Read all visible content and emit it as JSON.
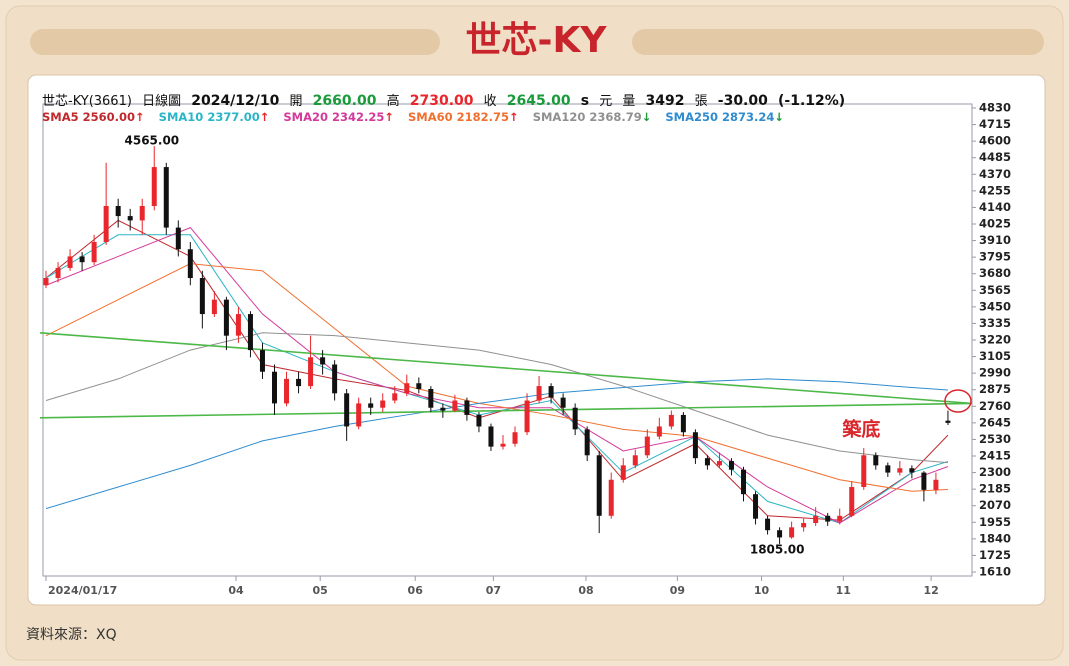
{
  "chart_data": {
    "type": "candlestick",
    "title": "世芯-KY",
    "source": "資料來源：XQ",
    "header": {
      "symbol": "世芯-KY(3661)",
      "period": "日線圖",
      "date": "2024/12/10",
      "open_label": "開",
      "open": "2660.00",
      "high_label": "高",
      "high": "2730.00",
      "close_label": "收",
      "close": "2645.00",
      "s": "s",
      "unit": "元",
      "volume_label": "量",
      "volume": "3492",
      "volume_unit": "張",
      "change": "-30.00",
      "change_pct": "(-1.12%)"
    },
    "xlim": [
      -0.5,
      77
    ],
    "ylim": [
      1610,
      4830
    ],
    "yticks": [
      1610,
      1725,
      1840,
      1955,
      2070,
      2185,
      2300,
      2415,
      2530,
      2645,
      2760,
      2875,
      2990,
      3105,
      3220,
      3335,
      3450,
      3565,
      3680,
      3795,
      3910,
      4025,
      4140,
      4255,
      4370,
      4485,
      4600,
      4715,
      4830
    ],
    "xticks": [
      {
        "value": 0,
        "label": "2024/01/17"
      },
      {
        "value": 15.8,
        "label": "04"
      },
      {
        "value": 22.8,
        "label": "05"
      },
      {
        "value": 30.7,
        "label": "06"
      },
      {
        "value": 37.2,
        "label": "07"
      },
      {
        "value": 44.9,
        "label": "08"
      },
      {
        "value": 52.5,
        "label": "09"
      },
      {
        "value": 59.5,
        "label": "10"
      },
      {
        "value": 66.3,
        "label": "11"
      },
      {
        "value": 73.6,
        "label": "12"
      }
    ],
    "up_color": "#e8262b",
    "down_color": "#111111",
    "ohlc": [
      [
        3600,
        3700,
        3580,
        3650
      ],
      [
        3650,
        3760,
        3620,
        3720
      ],
      [
        3720,
        3850,
        3700,
        3800
      ],
      [
        3800,
        3830,
        3700,
        3760
      ],
      [
        3760,
        3950,
        3740,
        3900
      ],
      [
        3900,
        4450,
        3880,
        4150
      ],
      [
        4150,
        4200,
        4000,
        4080
      ],
      [
        4080,
        4130,
        3980,
        4050
      ],
      [
        4050,
        4200,
        3950,
        4150
      ],
      [
        4150,
        4565,
        4120,
        4420
      ],
      [
        4420,
        4450,
        3950,
        4000
      ],
      [
        4000,
        4050,
        3800,
        3850
      ],
      [
        3850,
        3900,
        3600,
        3650
      ],
      [
        3650,
        3700,
        3300,
        3400
      ],
      [
        3400,
        3560,
        3380,
        3500
      ],
      [
        3500,
        3520,
        3150,
        3250
      ],
      [
        3250,
        3450,
        3200,
        3400
      ],
      [
        3400,
        3420,
        3100,
        3150
      ],
      [
        3150,
        3200,
        2950,
        3000
      ],
      [
        3000,
        3050,
        2700,
        2780
      ],
      [
        2780,
        3000,
        2760,
        2950
      ],
      [
        2950,
        3000,
        2850,
        2900
      ],
      [
        2900,
        3250,
        2880,
        3100
      ],
      [
        3100,
        3150,
        2980,
        3050
      ],
      [
        3050,
        3080,
        2800,
        2850
      ],
      [
        2850,
        2880,
        2520,
        2620
      ],
      [
        2620,
        2820,
        2600,
        2780
      ],
      [
        2780,
        2820,
        2700,
        2750
      ],
      [
        2750,
        2850,
        2720,
        2800
      ],
      [
        2800,
        2900,
        2780,
        2850
      ],
      [
        2850,
        2980,
        2830,
        2920
      ],
      [
        2920,
        2960,
        2850,
        2880
      ],
      [
        2880,
        2900,
        2720,
        2750
      ],
      [
        2750,
        2780,
        2680,
        2730
      ],
      [
        2730,
        2840,
        2720,
        2800
      ],
      [
        2800,
        2820,
        2660,
        2700
      ],
      [
        2700,
        2720,
        2580,
        2620
      ],
      [
        2620,
        2640,
        2450,
        2480
      ],
      [
        2480,
        2560,
        2460,
        2500
      ],
      [
        2500,
        2620,
        2480,
        2580
      ],
      [
        2580,
        2850,
        2560,
        2800
      ],
      [
        2800,
        2970,
        2780,
        2900
      ],
      [
        2900,
        2920,
        2780,
        2820
      ],
      [
        2820,
        2850,
        2700,
        2750
      ],
      [
        2750,
        2780,
        2560,
        2600
      ],
      [
        2600,
        2620,
        2380,
        2420
      ],
      [
        2420,
        2450,
        1880,
        2000
      ],
      [
        2000,
        2300,
        1980,
        2250
      ],
      [
        2250,
        2400,
        2230,
        2350
      ],
      [
        2350,
        2460,
        2330,
        2420
      ],
      [
        2420,
        2600,
        2400,
        2550
      ],
      [
        2550,
        2680,
        2530,
        2620
      ],
      [
        2620,
        2730,
        2600,
        2700
      ],
      [
        2700,
        2720,
        2550,
        2580
      ],
      [
        2580,
        2600,
        2360,
        2400
      ],
      [
        2400,
        2420,
        2320,
        2350
      ],
      [
        2350,
        2440,
        2330,
        2380
      ],
      [
        2380,
        2400,
        2280,
        2320
      ],
      [
        2320,
        2340,
        2100,
        2150
      ],
      [
        2150,
        2170,
        1940,
        1980
      ],
      [
        1980,
        2000,
        1870,
        1900
      ],
      [
        1900,
        1920,
        1805,
        1850
      ],
      [
        1850,
        1960,
        1840,
        1920
      ],
      [
        1920,
        1980,
        1890,
        1950
      ],
      [
        1950,
        2060,
        1930,
        2000
      ],
      [
        2000,
        2020,
        1930,
        1960
      ],
      [
        1960,
        2050,
        1940,
        2000
      ],
      [
        2000,
        2240,
        1990,
        2200
      ],
      [
        2200,
        2470,
        2180,
        2420
      ],
      [
        2420,
        2440,
        2320,
        2350
      ],
      [
        2350,
        2370,
        2270,
        2300
      ],
      [
        2300,
        2380,
        2280,
        2330
      ],
      [
        2330,
        2350,
        2260,
        2300
      ],
      [
        2300,
        2310,
        2100,
        2180
      ],
      [
        2180,
        2300,
        2150,
        2250
      ],
      [
        2660,
        2730,
        2630,
        2645
      ]
    ],
    "ma_x": [
      0,
      6,
      12,
      18,
      24,
      30,
      36,
      42,
      48,
      54,
      60,
      66,
      72,
      75
    ],
    "series": [
      {
        "name": "SMA5",
        "color": "#c0282d",
        "value_label": "2560.00",
        "arrow": "↑",
        "arrow_color": "#e8262b",
        "values": [
          3650,
          4050,
          3800,
          3050,
          2950,
          2870,
          2680,
          2830,
          2250,
          2500,
          2000,
          1970,
          2300,
          2560
        ]
      },
      {
        "name": "SMA10",
        "color": "#2bb5c5",
        "value_label": "2377.00",
        "arrow": "↑",
        "arrow_color": "#e8262b",
        "values": [
          3650,
          3950,
          3950,
          3200,
          3000,
          2850,
          2700,
          2800,
          2300,
          2550,
          2100,
          1950,
          2300,
          2377
        ]
      },
      {
        "name": "SMA20",
        "color": "#d43a9a",
        "value_label": "2342.25",
        "arrow": "↑",
        "arrow_color": "#e8262b",
        "values": [
          3600,
          3800,
          4000,
          3400,
          3000,
          2850,
          2750,
          2750,
          2450,
          2550,
          2200,
          1950,
          2250,
          2342.25
        ]
      },
      {
        "name": "SMA60",
        "color": "#f07030",
        "value_label": "2182.75",
        "arrow": "↑",
        "arrow_color": "#e8262b",
        "values": [
          3250,
          3500,
          3750,
          3700,
          3300,
          2900,
          2780,
          2700,
          2600,
          2550,
          2400,
          2250,
          2170,
          2182.75
        ]
      },
      {
        "name": "SMA120",
        "color": "#909090",
        "value_label": "2368.79",
        "arrow": "↓",
        "arrow_color": "#1a9a3a",
        "values": [
          2800,
          2950,
          3150,
          3270,
          3250,
          3200,
          3150,
          3050,
          2900,
          2730,
          2560,
          2450,
          2390,
          2368.79
        ]
      },
      {
        "name": "SMA250",
        "color": "#2f8ccf",
        "value_label": "2873.24",
        "arrow": "↓",
        "arrow_color": "#1a9a3a",
        "values": [
          2050,
          2200,
          2350,
          2520,
          2620,
          2700,
          2780,
          2850,
          2890,
          2930,
          2950,
          2930,
          2890,
          2873.24
        ]
      }
    ],
    "trendlines": [
      {
        "color": "#4cb848",
        "x": [
          -0.5,
          77
        ],
        "values": [
          3270,
          2780
        ]
      },
      {
        "color": "#4cb848",
        "x": [
          -0.5,
          77
        ],
        "values": [
          2680,
          2780
        ]
      }
    ],
    "annotations": [
      {
        "text": "4565.00",
        "x": 8.8,
        "y": 4600,
        "color": "#111111"
      },
      {
        "text": "1805.00",
        "x": 60.8,
        "y": 1763,
        "color": "#111111"
      },
      {
        "text": "築底",
        "x": 67.8,
        "y": 2595,
        "color": "#d9262b"
      }
    ]
  }
}
